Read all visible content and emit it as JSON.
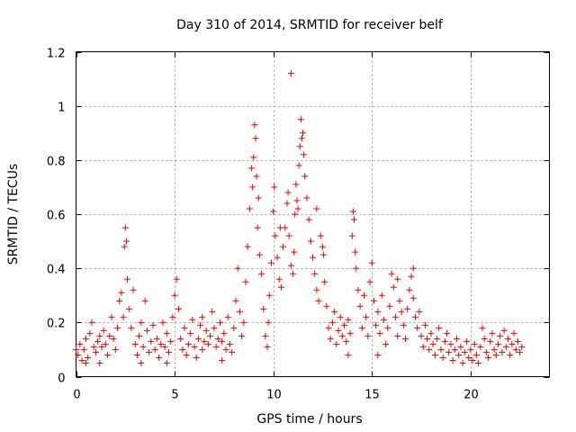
{
  "chart_data": {
    "type": "scatter",
    "title": "Day 310 of 2014, SRMTID for receiver belf",
    "xlabel": "GPS time / hours",
    "ylabel": "SRMTID / TECUs",
    "xlim": [
      0,
      24
    ],
    "ylim": [
      0,
      1.2
    ],
    "xticks": [
      0,
      5,
      10,
      15,
      20
    ],
    "yticks": [
      0,
      0.2,
      0.4,
      0.6,
      0.8,
      1,
      1.2
    ],
    "xtick_labels": [
      "0",
      "5",
      "10",
      "15",
      "20"
    ],
    "ytick_labels": [
      "0",
      "0.2",
      "0.4",
      "0.6",
      "0.8",
      "1",
      "1.2"
    ],
    "grid": true,
    "marker": "+",
    "color": "#ee0000",
    "series": [
      {
        "name": "SRMTID",
        "points": [
          [
            0.0,
            0.1
          ],
          [
            0.1,
            0.08
          ],
          [
            0.2,
            0.12
          ],
          [
            0.3,
            0.06
          ],
          [
            0.4,
            0.1
          ],
          [
            0.5,
            0.14
          ],
          [
            0.6,
            0.07
          ],
          [
            0.7,
            0.16
          ],
          [
            0.8,
            0.2
          ],
          [
            0.9,
            0.11
          ],
          [
            1.0,
            0.09
          ],
          [
            1.1,
            0.13
          ],
          [
            1.2,
            0.05
          ],
          [
            1.3,
            0.11
          ],
          [
            1.4,
            0.17
          ],
          [
            1.5,
            0.12
          ],
          [
            1.6,
            0.08
          ],
          [
            1.7,
            0.15
          ],
          [
            1.8,
            0.22
          ],
          [
            1.9,
            0.14
          ],
          [
            2.0,
            0.1
          ],
          [
            2.1,
            0.18
          ],
          [
            2.2,
            0.28
          ],
          [
            2.3,
            0.31
          ],
          [
            2.4,
            0.22
          ],
          [
            2.45,
            0.48
          ],
          [
            2.5,
            0.55
          ],
          [
            2.55,
            0.5
          ],
          [
            2.6,
            0.36
          ],
          [
            2.7,
            0.25
          ],
          [
            2.8,
            0.18
          ],
          [
            2.9,
            0.32
          ],
          [
            3.0,
            0.12
          ],
          [
            3.1,
            0.08
          ],
          [
            3.2,
            0.15
          ],
          [
            3.3,
            0.2
          ],
          [
            3.4,
            0.11
          ],
          [
            3.5,
            0.28
          ],
          [
            3.6,
            0.17
          ],
          [
            3.7,
            0.09
          ],
          [
            3.8,
            0.13
          ],
          [
            3.9,
            0.19
          ],
          [
            4.0,
            0.1
          ],
          [
            4.1,
            0.14
          ],
          [
            4.2,
            0.07
          ],
          [
            4.3,
            0.12
          ],
          [
            4.4,
            0.2
          ],
          [
            4.5,
            0.11
          ],
          [
            4.6,
            0.16
          ],
          [
            4.7,
            0.09
          ],
          [
            4.8,
            0.13
          ],
          [
            4.9,
            0.22
          ],
          [
            5.0,
            0.3
          ],
          [
            5.1,
            0.36
          ],
          [
            5.2,
            0.25
          ],
          [
            5.3,
            0.14
          ],
          [
            5.4,
            0.1
          ],
          [
            5.5,
            0.18
          ],
          [
            5.6,
            0.08
          ],
          [
            5.7,
            0.12
          ],
          [
            5.8,
            0.16
          ],
          [
            5.9,
            0.21
          ],
          [
            6.0,
            0.11
          ],
          [
            6.1,
            0.07
          ],
          [
            6.2,
            0.14
          ],
          [
            6.3,
            0.19
          ],
          [
            6.4,
            0.1
          ],
          [
            6.5,
            0.13
          ],
          [
            6.6,
            0.17
          ],
          [
            6.7,
            0.12
          ],
          [
            6.8,
            0.15
          ],
          [
            6.9,
            0.24
          ],
          [
            7.0,
            0.18
          ],
          [
            7.1,
            0.11
          ],
          [
            7.2,
            0.14
          ],
          [
            7.3,
            0.2
          ],
          [
            7.4,
            0.13
          ],
          [
            7.5,
            0.16
          ],
          [
            7.6,
            0.1
          ],
          [
            7.7,
            0.22
          ],
          [
            7.8,
            0.12
          ],
          [
            7.9,
            0.09
          ],
          [
            8.0,
            0.18
          ],
          [
            8.1,
            0.28
          ],
          [
            8.2,
            0.4
          ],
          [
            8.3,
            0.24
          ],
          [
            8.4,
            0.15
          ],
          [
            8.5,
            0.2
          ],
          [
            8.6,
            0.35
          ],
          [
            8.7,
            0.48
          ],
          [
            8.8,
            0.62
          ],
          [
            8.9,
            0.77
          ],
          [
            9.0,
            0.81
          ],
          [
            9.05,
            0.93
          ],
          [
            9.1,
            0.88
          ],
          [
            9.15,
            0.74
          ],
          [
            9.2,
            0.55
          ],
          [
            9.3,
            0.45
          ],
          [
            9.4,
            0.38
          ],
          [
            9.5,
            0.25
          ],
          [
            9.6,
            0.15
          ],
          [
            9.7,
            0.11
          ],
          [
            9.8,
            0.3
          ],
          [
            9.9,
            0.42
          ],
          [
            10.0,
            0.61
          ],
          [
            10.05,
            0.7
          ],
          [
            10.1,
            0.52
          ],
          [
            10.2,
            0.44
          ],
          [
            10.3,
            0.36
          ],
          [
            10.4,
            0.33
          ],
          [
            10.5,
            0.48
          ],
          [
            10.6,
            0.55
          ],
          [
            10.7,
            0.64
          ],
          [
            10.8,
            0.52
          ],
          [
            10.9,
            0.41
          ],
          [
            11.0,
            0.38
          ],
          [
            11.05,
            0.46
          ],
          [
            11.1,
            0.6
          ],
          [
            11.15,
            0.71
          ],
          [
            11.2,
            0.65
          ],
          [
            11.3,
            0.78
          ],
          [
            11.35,
            0.85
          ],
          [
            11.4,
            0.95
          ],
          [
            11.5,
            0.9
          ],
          [
            11.55,
            0.82
          ],
          [
            11.6,
            0.74
          ],
          [
            11.7,
            0.66
          ],
          [
            11.8,
            0.58
          ],
          [
            11.9,
            0.5
          ],
          [
            12.0,
            0.44
          ],
          [
            12.1,
            0.38
          ],
          [
            12.2,
            0.32
          ],
          [
            12.3,
            0.28
          ],
          [
            12.4,
            0.52
          ],
          [
            12.5,
            0.48
          ],
          [
            12.6,
            0.35
          ],
          [
            12.7,
            0.26
          ],
          [
            12.8,
            0.18
          ],
          [
            12.9,
            0.14
          ],
          [
            13.0,
            0.2
          ],
          [
            13.1,
            0.24
          ],
          [
            13.2,
            0.12
          ],
          [
            13.3,
            0.17
          ],
          [
            13.4,
            0.22
          ],
          [
            13.5,
            0.15
          ],
          [
            13.6,
            0.19
          ],
          [
            13.7,
            0.13
          ],
          [
            13.8,
            0.21
          ],
          [
            13.9,
            0.16
          ],
          [
            14.0,
            0.52
          ],
          [
            14.05,
            0.61
          ],
          [
            14.1,
            0.58
          ],
          [
            14.15,
            0.46
          ],
          [
            14.2,
            0.4
          ],
          [
            14.3,
            0.32
          ],
          [
            14.4,
            0.26
          ],
          [
            14.5,
            0.18
          ],
          [
            14.6,
            0.3
          ],
          [
            14.7,
            0.22
          ],
          [
            14.8,
            0.15
          ],
          [
            14.9,
            0.35
          ],
          [
            15.0,
            0.42
          ],
          [
            15.1,
            0.28
          ],
          [
            15.2,
            0.19
          ],
          [
            15.3,
            0.24
          ],
          [
            15.4,
            0.16
          ],
          [
            15.5,
            0.3
          ],
          [
            15.6,
            0.21
          ],
          [
            15.7,
            0.12
          ],
          [
            15.8,
            0.18
          ],
          [
            15.9,
            0.26
          ],
          [
            16.0,
            0.38
          ],
          [
            16.1,
            0.33
          ],
          [
            16.2,
            0.22
          ],
          [
            16.3,
            0.15
          ],
          [
            16.4,
            0.28
          ],
          [
            16.5,
            0.24
          ],
          [
            16.6,
            0.19
          ],
          [
            16.7,
            0.14
          ],
          [
            16.8,
            0.25
          ],
          [
            16.9,
            0.32
          ],
          [
            17.0,
            0.37
          ],
          [
            17.1,
            0.29
          ],
          [
            17.2,
            0.22
          ],
          [
            17.3,
            0.18
          ],
          [
            17.4,
            0.24
          ],
          [
            17.5,
            0.15
          ],
          [
            17.6,
            0.11
          ],
          [
            17.7,
            0.19
          ],
          [
            17.8,
            0.14
          ],
          [
            17.9,
            0.1
          ],
          [
            18.0,
            0.16
          ],
          [
            18.1,
            0.12
          ],
          [
            18.2,
            0.08
          ],
          [
            18.3,
            0.14
          ],
          [
            18.4,
            0.18
          ],
          [
            18.5,
            0.1
          ],
          [
            18.6,
            0.07
          ],
          [
            18.7,
            0.13
          ],
          [
            18.8,
            0.16
          ],
          [
            18.9,
            0.09
          ],
          [
            19.0,
            0.12
          ],
          [
            19.1,
            0.06
          ],
          [
            19.2,
            0.1
          ],
          [
            19.3,
            0.14
          ],
          [
            19.4,
            0.08
          ],
          [
            19.5,
            0.11
          ],
          [
            19.6,
            0.05
          ],
          [
            19.7,
            0.09
          ],
          [
            19.8,
            0.13
          ],
          [
            19.9,
            0.07
          ],
          [
            20.0,
            0.1
          ],
          [
            20.1,
            0.06
          ],
          [
            20.2,
            0.12
          ],
          [
            20.3,
            0.08
          ],
          [
            20.4,
            0.05
          ],
          [
            20.5,
            0.11
          ],
          [
            20.6,
            0.18
          ],
          [
            20.7,
            0.14
          ],
          [
            20.8,
            0.09
          ],
          [
            20.9,
            0.07
          ],
          [
            21.0,
            0.13
          ],
          [
            21.1,
            0.16
          ],
          [
            21.2,
            0.1
          ],
          [
            21.3,
            0.08
          ],
          [
            21.4,
            0.12
          ],
          [
            21.5,
            0.15
          ],
          [
            21.6,
            0.09
          ],
          [
            21.7,
            0.17
          ],
          [
            21.8,
            0.11
          ],
          [
            21.9,
            0.14
          ],
          [
            22.0,
            0.08
          ],
          [
            22.1,
            0.12
          ],
          [
            22.2,
            0.16
          ],
          [
            22.3,
            0.1
          ],
          [
            22.4,
            0.13
          ],
          [
            22.5,
            0.09
          ],
          [
            22.6,
            0.11
          ],
          [
            10.9,
            1.12
          ],
          [
            10.75,
            0.68
          ],
          [
            11.45,
            0.88
          ],
          [
            11.25,
            0.62
          ],
          [
            9.25,
            0.66
          ],
          [
            8.95,
            0.7
          ],
          [
            12.2,
            0.62
          ],
          [
            12.55,
            0.45
          ],
          [
            10.35,
            0.55
          ],
          [
            9.75,
            0.2
          ],
          [
            0.5,
            0.05
          ],
          [
            1.2,
            0.15
          ],
          [
            3.3,
            0.05
          ],
          [
            4.6,
            0.05
          ],
          [
            6.4,
            0.22
          ],
          [
            7.4,
            0.06
          ],
          [
            13.8,
            0.08
          ],
          [
            15.3,
            0.08
          ],
          [
            16.3,
            0.36
          ],
          [
            17.1,
            0.4
          ]
        ]
      }
    ]
  }
}
